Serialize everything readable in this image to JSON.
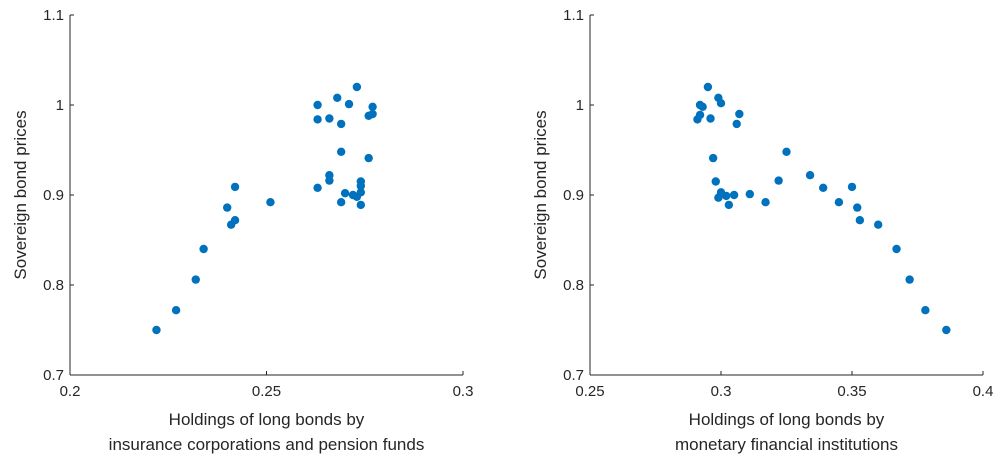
{
  "chart_data": [
    {
      "type": "scatter",
      "xlabel_lines": [
        "Holdings of long bonds by",
        "insurance corporations and pension funds"
      ],
      "ylabel": "Sovereign bond prices",
      "xlim": [
        0.2,
        0.3
      ],
      "ylim": [
        0.7,
        1.1
      ],
      "xticks": [
        "0.2",
        "0.25",
        "0.3"
      ],
      "yticks": [
        "0.7",
        "0.8",
        "0.9",
        "1",
        "1.1"
      ],
      "color": "#0072bd",
      "grid": false,
      "points": [
        {
          "x": 0.222,
          "y": 0.75
        },
        {
          "x": 0.227,
          "y": 0.772
        },
        {
          "x": 0.232,
          "y": 0.806
        },
        {
          "x": 0.234,
          "y": 0.84
        },
        {
          "x": 0.24,
          "y": 0.886
        },
        {
          "x": 0.241,
          "y": 0.867
        },
        {
          "x": 0.242,
          "y": 0.872
        },
        {
          "x": 0.242,
          "y": 0.909
        },
        {
          "x": 0.251,
          "y": 0.892
        },
        {
          "x": 0.263,
          "y": 1.0
        },
        {
          "x": 0.263,
          "y": 0.984
        },
        {
          "x": 0.263,
          "y": 0.908
        },
        {
          "x": 0.266,
          "y": 0.985
        },
        {
          "x": 0.266,
          "y": 0.922
        },
        {
          "x": 0.266,
          "y": 0.916
        },
        {
          "x": 0.268,
          "y": 1.008
        },
        {
          "x": 0.269,
          "y": 0.979
        },
        {
          "x": 0.269,
          "y": 0.948
        },
        {
          "x": 0.269,
          "y": 0.892
        },
        {
          "x": 0.27,
          "y": 0.902
        },
        {
          "x": 0.271,
          "y": 1.001
        },
        {
          "x": 0.272,
          "y": 0.9
        },
        {
          "x": 0.273,
          "y": 1.02
        },
        {
          "x": 0.273,
          "y": 0.898
        },
        {
          "x": 0.274,
          "y": 0.915
        },
        {
          "x": 0.274,
          "y": 0.91
        },
        {
          "x": 0.274,
          "y": 0.903
        },
        {
          "x": 0.274,
          "y": 0.889
        },
        {
          "x": 0.276,
          "y": 0.988
        },
        {
          "x": 0.276,
          "y": 0.941
        },
        {
          "x": 0.277,
          "y": 0.99
        },
        {
          "x": 0.277,
          "y": 0.998
        }
      ]
    },
    {
      "type": "scatter",
      "xlabel_lines": [
        "Holdings of long bonds by",
        "monetary financial institutions"
      ],
      "ylabel": "Sovereign bond prices",
      "xlim": [
        0.25,
        0.4
      ],
      "ylim": [
        0.7,
        1.1
      ],
      "xticks": [
        "0.25",
        "0.3",
        "0.35",
        "0.4"
      ],
      "yticks": [
        "0.7",
        "0.8",
        "0.9",
        "1",
        "1.1"
      ],
      "color": "#0072bd",
      "grid": false,
      "points": [
        {
          "x": 0.386,
          "y": 0.75
        },
        {
          "x": 0.378,
          "y": 0.772
        },
        {
          "x": 0.372,
          "y": 0.806
        },
        {
          "x": 0.367,
          "y": 0.84
        },
        {
          "x": 0.36,
          "y": 0.867
        },
        {
          "x": 0.353,
          "y": 0.872
        },
        {
          "x": 0.352,
          "y": 0.886
        },
        {
          "x": 0.35,
          "y": 0.909
        },
        {
          "x": 0.345,
          "y": 0.892
        },
        {
          "x": 0.339,
          "y": 0.908
        },
        {
          "x": 0.334,
          "y": 0.922
        },
        {
          "x": 0.325,
          "y": 0.948
        },
        {
          "x": 0.322,
          "y": 0.916
        },
        {
          "x": 0.317,
          "y": 0.892
        },
        {
          "x": 0.311,
          "y": 0.901
        },
        {
          "x": 0.305,
          "y": 0.9
        },
        {
          "x": 0.303,
          "y": 0.889
        },
        {
          "x": 0.302,
          "y": 0.899
        },
        {
          "x": 0.3,
          "y": 0.903
        },
        {
          "x": 0.299,
          "y": 0.897
        },
        {
          "x": 0.298,
          "y": 0.915
        },
        {
          "x": 0.297,
          "y": 0.941
        },
        {
          "x": 0.291,
          "y": 0.984
        },
        {
          "x": 0.292,
          "y": 1.0
        },
        {
          "x": 0.292,
          "y": 0.989
        },
        {
          "x": 0.293,
          "y": 0.998
        },
        {
          "x": 0.295,
          "y": 1.02
        },
        {
          "x": 0.296,
          "y": 0.985
        },
        {
          "x": 0.299,
          "y": 1.008
        },
        {
          "x": 0.3,
          "y": 1.002
        },
        {
          "x": 0.306,
          "y": 0.979
        },
        {
          "x": 0.307,
          "y": 0.99
        }
      ]
    }
  ]
}
